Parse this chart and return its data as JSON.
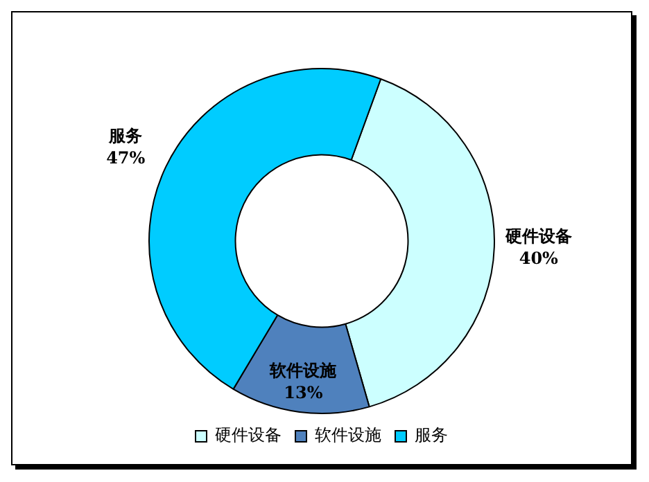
{
  "chart_data": {
    "type": "donut",
    "categories": [
      "硬件设备",
      "软件设施",
      "服务"
    ],
    "values": [
      40,
      13,
      47
    ],
    "value_labels": [
      "40%",
      "13%",
      "47%"
    ],
    "colors": [
      "#ccffff",
      "#4f81bd",
      "#00ccff"
    ],
    "legend": "bottom"
  }
}
